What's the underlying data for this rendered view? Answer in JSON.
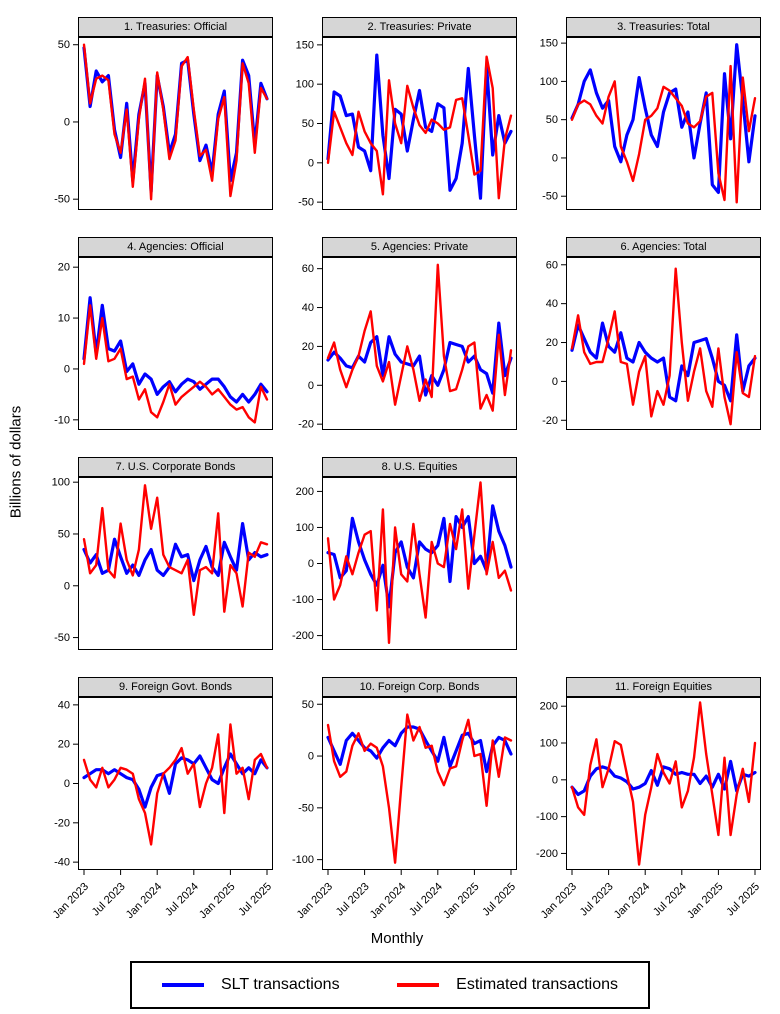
{
  "chart_data": {
    "type": "line",
    "ylabel": "Billions of dollars",
    "xlabel": "Monthly",
    "x_categories": [
      "2023-01",
      "2023-02",
      "2023-03",
      "2023-04",
      "2023-05",
      "2023-06",
      "2023-07",
      "2023-08",
      "2023-09",
      "2023-10",
      "2023-11",
      "2023-12",
      "2024-01",
      "2024-02",
      "2024-03",
      "2024-04",
      "2024-05",
      "2024-06",
      "2024-07",
      "2024-08",
      "2024-09",
      "2024-10",
      "2024-11",
      "2024-12",
      "2025-01",
      "2025-02",
      "2025-03",
      "2025-04",
      "2025-05",
      "2025-06",
      "2025-07"
    ],
    "x_tick_labels": [
      "Jan 2023",
      "Jul 2023",
      "Jan 2024",
      "Jul 2024",
      "Jan 2025",
      "Jul 2025"
    ],
    "x_tick_positions": [
      0,
      6,
      12,
      18,
      24,
      30
    ],
    "grid": false,
    "legend_position": "bottom",
    "panels": [
      {
        "title": "1. Treasuries: Official",
        "yticks": [
          50,
          0,
          -50
        ],
        "ylim": [
          -57,
          55
        ],
        "series": [
          {
            "name": "SLT transactions",
            "color": "#0000ff",
            "values": [
              48,
              10,
              33,
              26,
              30,
              -5,
              -23,
              12,
              -38,
              5,
              25,
              -45,
              30,
              10,
              -20,
              -8,
              38,
              40,
              5,
              -25,
              -15,
              -33,
              5,
              20,
              -38,
              -20,
              40,
              30,
              -15,
              25,
              15
            ]
          },
          {
            "name": "Estimated transactions",
            "color": "#ff0000",
            "values": [
              50,
              12,
              28,
              30,
              27,
              -8,
              -20,
              8,
              -42,
              2,
              28,
              -50,
              32,
              8,
              -24,
              -12,
              36,
              42,
              8,
              -22,
              -18,
              -38,
              2,
              16,
              -48,
              -25,
              38,
              25,
              -20,
              22,
              15
            ]
          }
        ]
      },
      {
        "title": "2. Treasuries: Private",
        "yticks": [
          150,
          100,
          50,
          0,
          -50
        ],
        "ylim": [
          -60,
          160
        ],
        "series": [
          {
            "name": "SLT transactions",
            "color": "#0000ff",
            "values": [
              5,
              90,
              85,
              60,
              62,
              20,
              15,
              -10,
              137,
              35,
              -20,
              68,
              62,
              15,
              55,
              92,
              45,
              40,
              75,
              70,
              -35,
              -20,
              25,
              120,
              35,
              -45,
              123,
              10,
              60,
              25,
              40
            ]
          },
          {
            "name": "Estimated transactions",
            "color": "#ff0000",
            "values": [
              0,
              65,
              45,
              25,
              10,
              65,
              40,
              25,
              15,
              -40,
              105,
              50,
              25,
              98,
              70,
              48,
              38,
              55,
              50,
              42,
              45,
              80,
              82,
              35,
              -15,
              -10,
              135,
              95,
              -45,
              30,
              60
            ]
          }
        ]
      },
      {
        "title": "3. Treasuries: Total",
        "yticks": [
          150,
          100,
          50,
          0,
          -50
        ],
        "ylim": [
          -68,
          158
        ],
        "series": [
          {
            "name": "SLT transactions",
            "color": "#0000ff",
            "values": [
              52,
              70,
              100,
              115,
              85,
              65,
              75,
              15,
              -5,
              30,
              50,
              105,
              65,
              30,
              15,
              60,
              85,
              90,
              40,
              60,
              0,
              45,
              85,
              -35,
              -45,
              110,
              25,
              148,
              75,
              -5,
              55
            ]
          },
          {
            "name": "Estimated transactions",
            "color": "#ff0000",
            "values": [
              50,
              70,
              75,
              70,
              55,
              45,
              80,
              100,
              15,
              -5,
              -30,
              5,
              50,
              55,
              65,
              93,
              88,
              78,
              68,
              45,
              40,
              48,
              80,
              85,
              -20,
              -55,
              120,
              -58,
              105,
              35,
              78
            ]
          }
        ]
      },
      {
        "title": "4. Agencies: Official",
        "yticks": [
          20,
          10,
          0,
          -10
        ],
        "ylim": [
          -12,
          22
        ],
        "series": [
          {
            "name": "SLT transactions",
            "color": "#0000ff",
            "values": [
              2,
              14,
              3,
              12.5,
              4,
              3.5,
              5.5,
              -0.5,
              1,
              -3,
              -1,
              -2,
              -5,
              -3.5,
              -2.5,
              -4.5,
              -3,
              -2,
              -2.5,
              -4,
              -3,
              -2,
              -2,
              -3.5,
              -5.5,
              -6.5,
              -5,
              -6.5,
              -5,
              -3,
              -4.5
            ]
          },
          {
            "name": "Estimated transactions",
            "color": "#ff0000",
            "values": [
              1,
              12.5,
              2,
              10,
              1.5,
              2,
              4,
              -2,
              -1.5,
              -6,
              -4,
              -8.5,
              -9.5,
              -6.5,
              -3,
              -7,
              -5.5,
              -4.5,
              -3.5,
              -2.5,
              -3.5,
              -5,
              -4,
              -5.5,
              -7,
              -8,
              -7.5,
              -9.5,
              -10.5,
              -3.5,
              -6
            ]
          }
        ]
      },
      {
        "title": "5. Agencies: Private",
        "yticks": [
          60,
          40,
          20,
          0,
          -20
        ],
        "ylim": [
          -23,
          66
        ],
        "series": [
          {
            "name": "SLT transactions",
            "color": "#0000ff",
            "values": [
              13,
              17,
              14,
              10,
              9,
              15,
              12,
              22,
              25,
              5,
              25,
              16,
              12,
              11,
              10,
              15,
              -5,
              5,
              0,
              8,
              22,
              21,
              20,
              12,
              15,
              8,
              6,
              -4,
              32,
              5,
              14
            ]
          },
          {
            "name": "Estimated transactions",
            "color": "#ff0000",
            "values": [
              14,
              22,
              8,
              -1,
              8,
              15,
              28,
              38,
              10,
              2,
              12,
              -10,
              5,
              20,
              8,
              -8,
              3,
              -6,
              62,
              15,
              -3,
              -2,
              8,
              20,
              22,
              -12,
              -5,
              -13,
              26,
              -5,
              18
            ]
          }
        ]
      },
      {
        "title": "6. Agencies: Total",
        "yticks": [
          60,
          40,
          20,
          0,
          -20
        ],
        "ylim": [
          -25,
          64
        ],
        "series": [
          {
            "name": "SLT transactions",
            "color": "#0000ff",
            "values": [
              16,
              29,
              22,
              15,
              12,
              30,
              18,
              15,
              25,
              12,
              10,
              20,
              15,
              12,
              10,
              12,
              -8,
              -10,
              8,
              3,
              20,
              21,
              22,
              12,
              0,
              -2,
              -10,
              24,
              -5,
              8,
              12
            ]
          },
          {
            "name": "Estimated transactions",
            "color": "#ff0000",
            "values": [
              17,
              34,
              15,
              9,
              10,
              10,
              22,
              36,
              10,
              9,
              -12,
              5,
              13,
              -18,
              -5,
              -12,
              3,
              58,
              20,
              -10,
              5,
              17,
              -5,
              -13,
              17,
              -8,
              -22,
              15,
              -6,
              -8,
              13
            ]
          }
        ]
      },
      {
        "title": "7. U.S. Corporate Bonds",
        "yticks": [
          100,
          50,
          0,
          -50
        ],
        "ylim": [
          -62,
          105
        ],
        "series": [
          {
            "name": "SLT transactions",
            "color": "#0000ff",
            "values": [
              35,
              22,
              30,
              12,
              15,
              45,
              28,
              12,
              20,
              10,
              25,
              35,
              15,
              10,
              18,
              40,
              28,
              30,
              5,
              25,
              38,
              18,
              10,
              42,
              28,
              15,
              60,
              25,
              32,
              28,
              30
            ]
          },
          {
            "name": "Estimated transactions",
            "color": "#ff0000",
            "values": [
              45,
              12,
              20,
              75,
              15,
              8,
              60,
              25,
              10,
              35,
              97,
              55,
              85,
              30,
              18,
              15,
              12,
              25,
              -28,
              15,
              18,
              12,
              70,
              -25,
              20,
              12,
              -20,
              32,
              28,
              42,
              40
            ]
          }
        ]
      },
      {
        "title": "8. U.S. Equities",
        "yticks": [
          200,
          100,
          0,
          -100,
          -200
        ],
        "ylim": [
          -240,
          240
        ],
        "series": [
          {
            "name": "SLT transactions",
            "color": "#0000ff",
            "values": [
              30,
              25,
              -40,
              -20,
              125,
              60,
              10,
              -30,
              -60,
              -5,
              -120,
              30,
              60,
              -10,
              -40,
              60,
              40,
              30,
              50,
              125,
              -50,
              130,
              100,
              130,
              0,
              20,
              -20,
              160,
              90,
              50,
              -10
            ]
          },
          {
            "name": "Estimated transactions",
            "color": "#ff0000",
            "values": [
              70,
              -100,
              -60,
              20,
              -30,
              30,
              80,
              90,
              -130,
              150,
              -220,
              100,
              -30,
              -50,
              110,
              -30,
              -150,
              60,
              0,
              -10,
              110,
              40,
              150,
              -70,
              80,
              225,
              -30,
              60,
              -40,
              -20,
              -75
            ]
          }
        ]
      },
      {
        "title": "9. Foreign Govt. Bonds",
        "yticks": [
          40,
          20,
          0,
          -20,
          -40
        ],
        "ylim": [
          -44,
          44
        ],
        "series": [
          {
            "name": "SLT transactions",
            "color": "#0000ff",
            "values": [
              3,
              5,
              7,
              7,
              5,
              7,
              5,
              3,
              2,
              -3,
              -12,
              -2,
              4,
              5,
              -5,
              10,
              13,
              12,
              10,
              14,
              8,
              2,
              0,
              8,
              15,
              10,
              5,
              8,
              5,
              12,
              8
            ]
          },
          {
            "name": "Estimated transactions",
            "color": "#ff0000",
            "values": [
              12,
              2,
              -2,
              8,
              -2,
              2,
              8,
              7,
              5,
              -8,
              -15,
              -31,
              -5,
              5,
              8,
              12,
              18,
              5,
              10,
              -12,
              0,
              8,
              25,
              -15,
              30,
              5,
              8,
              -8,
              12,
              15,
              8
            ]
          }
        ]
      },
      {
        "title": "10. Foreign Corp. Bonds",
        "yticks": [
          50,
          0,
          -50,
          -100
        ],
        "ylim": [
          -110,
          57
        ],
        "series": [
          {
            "name": "SLT transactions",
            "color": "#0000ff",
            "values": [
              18,
              5,
              -8,
              15,
              22,
              15,
              8,
              5,
              -2,
              8,
              15,
              10,
              22,
              28,
              28,
              26,
              15,
              5,
              -5,
              18,
              -10,
              5,
              20,
              22,
              12,
              15,
              -15,
              10,
              18,
              15,
              2
            ]
          },
          {
            "name": "Estimated transactions",
            "color": "#ff0000",
            "values": [
              30,
              -5,
              -20,
              -15,
              10,
              22,
              5,
              12,
              8,
              -10,
              -50,
              -103,
              -30,
              40,
              15,
              28,
              8,
              10,
              -15,
              -28,
              -12,
              -10,
              15,
              35,
              0,
              2,
              -48,
              15,
              -20,
              18,
              15
            ]
          }
        ]
      },
      {
        "title": "11. Foreign Equities",
        "yticks": [
          200,
          100,
          0,
          -100,
          -200
        ],
        "ylim": [
          -245,
          225
        ],
        "series": [
          {
            "name": "SLT transactions",
            "color": "#0000ff",
            "values": [
              -20,
              -40,
              -30,
              10,
              30,
              35,
              30,
              10,
              5,
              -5,
              -25,
              -20,
              -10,
              25,
              -15,
              35,
              30,
              15,
              20,
              15,
              15,
              -10,
              10,
              -20,
              15,
              -25,
              50,
              -30,
              15,
              10,
              20
            ]
          },
          {
            "name": "Estimated transactions",
            "color": "#ff0000",
            "values": [
              -20,
              -75,
              -95,
              40,
              110,
              -20,
              30,
              105,
              95,
              15,
              -60,
              -230,
              -95,
              -20,
              70,
              20,
              -10,
              50,
              -75,
              -30,
              60,
              210,
              70,
              -40,
              -150,
              60,
              -150,
              -40,
              30,
              -60,
              100
            ]
          }
        ]
      }
    ]
  },
  "legend": {
    "items": [
      {
        "label": "SLT transactions",
        "color": "#0000ff"
      },
      {
        "label": "Estimated transactions",
        "color": "#ff0000"
      }
    ]
  }
}
